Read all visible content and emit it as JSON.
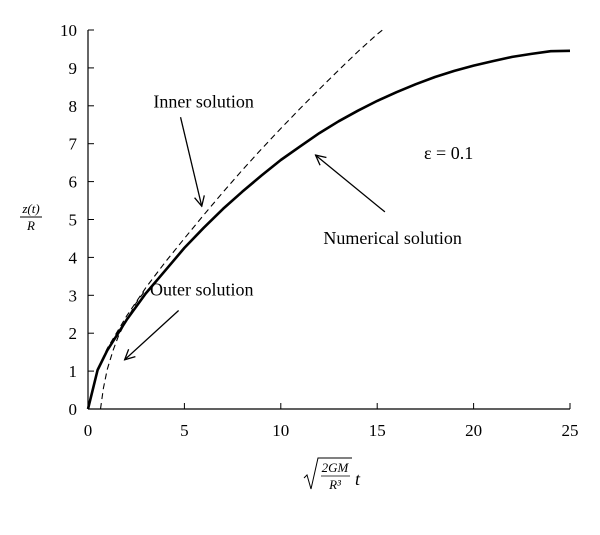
{
  "chart_data": {
    "type": "line",
    "xlim": [
      0,
      25
    ],
    "ylim": [
      0,
      10
    ],
    "x_ticks": [
      0,
      5,
      10,
      15,
      20,
      25
    ],
    "y_ticks": [
      0,
      1,
      2,
      3,
      4,
      5,
      6,
      7,
      8,
      9,
      10
    ],
    "grid": false,
    "xlabel": {
      "sqrt_num": "2GM",
      "sqrt_den": "R³",
      "var": "t"
    },
    "ylabel": {
      "num": "z(t)",
      "den": "R"
    },
    "epsilon_label": "ε = 0.1",
    "series": [
      {
        "name": "Numerical solution",
        "style": "solid",
        "x": [
          0,
          0.5,
          1,
          2,
          3,
          4,
          5,
          6,
          7,
          8,
          9,
          10,
          11,
          12,
          13,
          14,
          15,
          16,
          17,
          18,
          19,
          20,
          21,
          22,
          23,
          24,
          25
        ],
        "y": [
          0,
          1.03,
          1.55,
          2.35,
          3.05,
          3.65,
          4.25,
          4.78,
          5.28,
          5.73,
          6.16,
          6.57,
          6.93,
          7.28,
          7.59,
          7.87,
          8.13,
          8.36,
          8.57,
          8.76,
          8.92,
          9.06,
          9.18,
          9.29,
          9.37,
          9.44,
          9.45
        ]
      },
      {
        "name": "Inner solution",
        "style": "dashed",
        "x": [
          0,
          0.5,
          1,
          2,
          3,
          4,
          5,
          6,
          7,
          8,
          9,
          10,
          11,
          12,
          13,
          14,
          15,
          15.4
        ],
        "y": [
          0,
          1.05,
          1.6,
          2.45,
          3.2,
          3.87,
          4.5,
          5.12,
          5.72,
          6.3,
          6.86,
          7.4,
          7.93,
          8.44,
          8.94,
          9.43,
          9.89,
          10.05
        ]
      },
      {
        "name": "Outer solution",
        "style": "dashed",
        "x": [
          0.65,
          0.8,
          1,
          1.3,
          1.6,
          2,
          2.5,
          3
        ],
        "y": [
          0,
          0.55,
          1.05,
          1.55,
          1.95,
          2.35,
          2.8,
          3.15
        ]
      }
    ],
    "annotations": [
      {
        "text": "Inner solution",
        "text_at": [
          6,
          7.95
        ],
        "arrow_from": [
          4.8,
          7.7
        ],
        "arrow_to": [
          5.9,
          5.35
        ]
      },
      {
        "text": "Numerical solution",
        "text_at": [
          15.8,
          4.35
        ],
        "arrow_from": [
          15.4,
          5.2
        ],
        "arrow_to": [
          11.8,
          6.7
        ]
      },
      {
        "text": "Outer solution",
        "text_at": [
          5.9,
          3.0
        ],
        "arrow_from": [
          4.7,
          2.6
        ],
        "arrow_to": [
          1.9,
          1.3
        ]
      }
    ]
  }
}
